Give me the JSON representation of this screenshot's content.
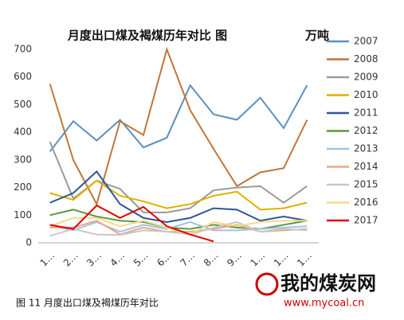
{
  "chart_data": {
    "type": "line",
    "title": "月度出口煤及褐煤历年对比 图",
    "unit_label": "万吨",
    "categories": [
      "1…",
      "2…",
      "3…",
      "4…",
      "5…",
      "6…",
      "7…",
      "8…",
      "9…",
      "1…",
      "1…",
      "1…"
    ],
    "ylim": [
      0,
      700
    ],
    "yticks": [
      0,
      100,
      200,
      300,
      400,
      500,
      600,
      700
    ],
    "grid": false,
    "legend": "right",
    "series": [
      {
        "name": "2007",
        "color": "#5b8fbf",
        "values": [
          330,
          440,
          370,
          445,
          345,
          380,
          570,
          465,
          445,
          525,
          415,
          570
        ]
      },
      {
        "name": "2008",
        "color": "#c0763a",
        "values": [
          575,
          300,
          140,
          440,
          390,
          700,
          480,
          340,
          205,
          255,
          270,
          445
        ]
      },
      {
        "name": "2009",
        "color": "#999999",
        "values": [
          365,
          160,
          225,
          195,
          110,
          110,
          125,
          190,
          200,
          205,
          145,
          205
        ]
      },
      {
        "name": "2010",
        "color": "#e0b000",
        "values": [
          180,
          155,
          225,
          170,
          150,
          125,
          140,
          170,
          185,
          120,
          125,
          145
        ]
      },
      {
        "name": "2011",
        "color": "#2f5597",
        "values": [
          145,
          180,
          258,
          140,
          90,
          75,
          90,
          125,
          120,
          80,
          95,
          80
        ]
      },
      {
        "name": "2012",
        "color": "#5a9a3a",
        "values": [
          100,
          120,
          95,
          80,
          75,
          55,
          50,
          65,
          55,
          50,
          65,
          80
        ]
      },
      {
        "name": "2013",
        "color": "#9dc3e6",
        "values": [
          60,
          45,
          75,
          40,
          65,
          50,
          75,
          45,
          45,
          50,
          55,
          60
        ]
      },
      {
        "name": "2014",
        "color": "#f4a582",
        "values": [
          55,
          55,
          80,
          30,
          55,
          40,
          40,
          50,
          65,
          40,
          45,
          50
        ]
      },
      {
        "name": "2015",
        "color": "#c8c8c8",
        "values": [
          25,
          50,
          30,
          28,
          45,
          40,
          30,
          55,
          75,
          40,
          50,
          45
        ]
      },
      {
        "name": "2016",
        "color": "#f6d98a",
        "values": [
          60,
          90,
          90,
          60,
          80,
          55,
          30,
          75,
          60,
          75,
          80,
          80
        ]
      },
      {
        "name": "2017",
        "color": "#e00000",
        "values": [
          65,
          50,
          135,
          90,
          130,
          60,
          30,
          5,
          null,
          null,
          null,
          null
        ]
      }
    ]
  },
  "caption": "图 11 月度出口煤及褐煤历年对比",
  "watermark": {
    "name": "我的煤炭网",
    "url": "www.mycoal.cn"
  }
}
